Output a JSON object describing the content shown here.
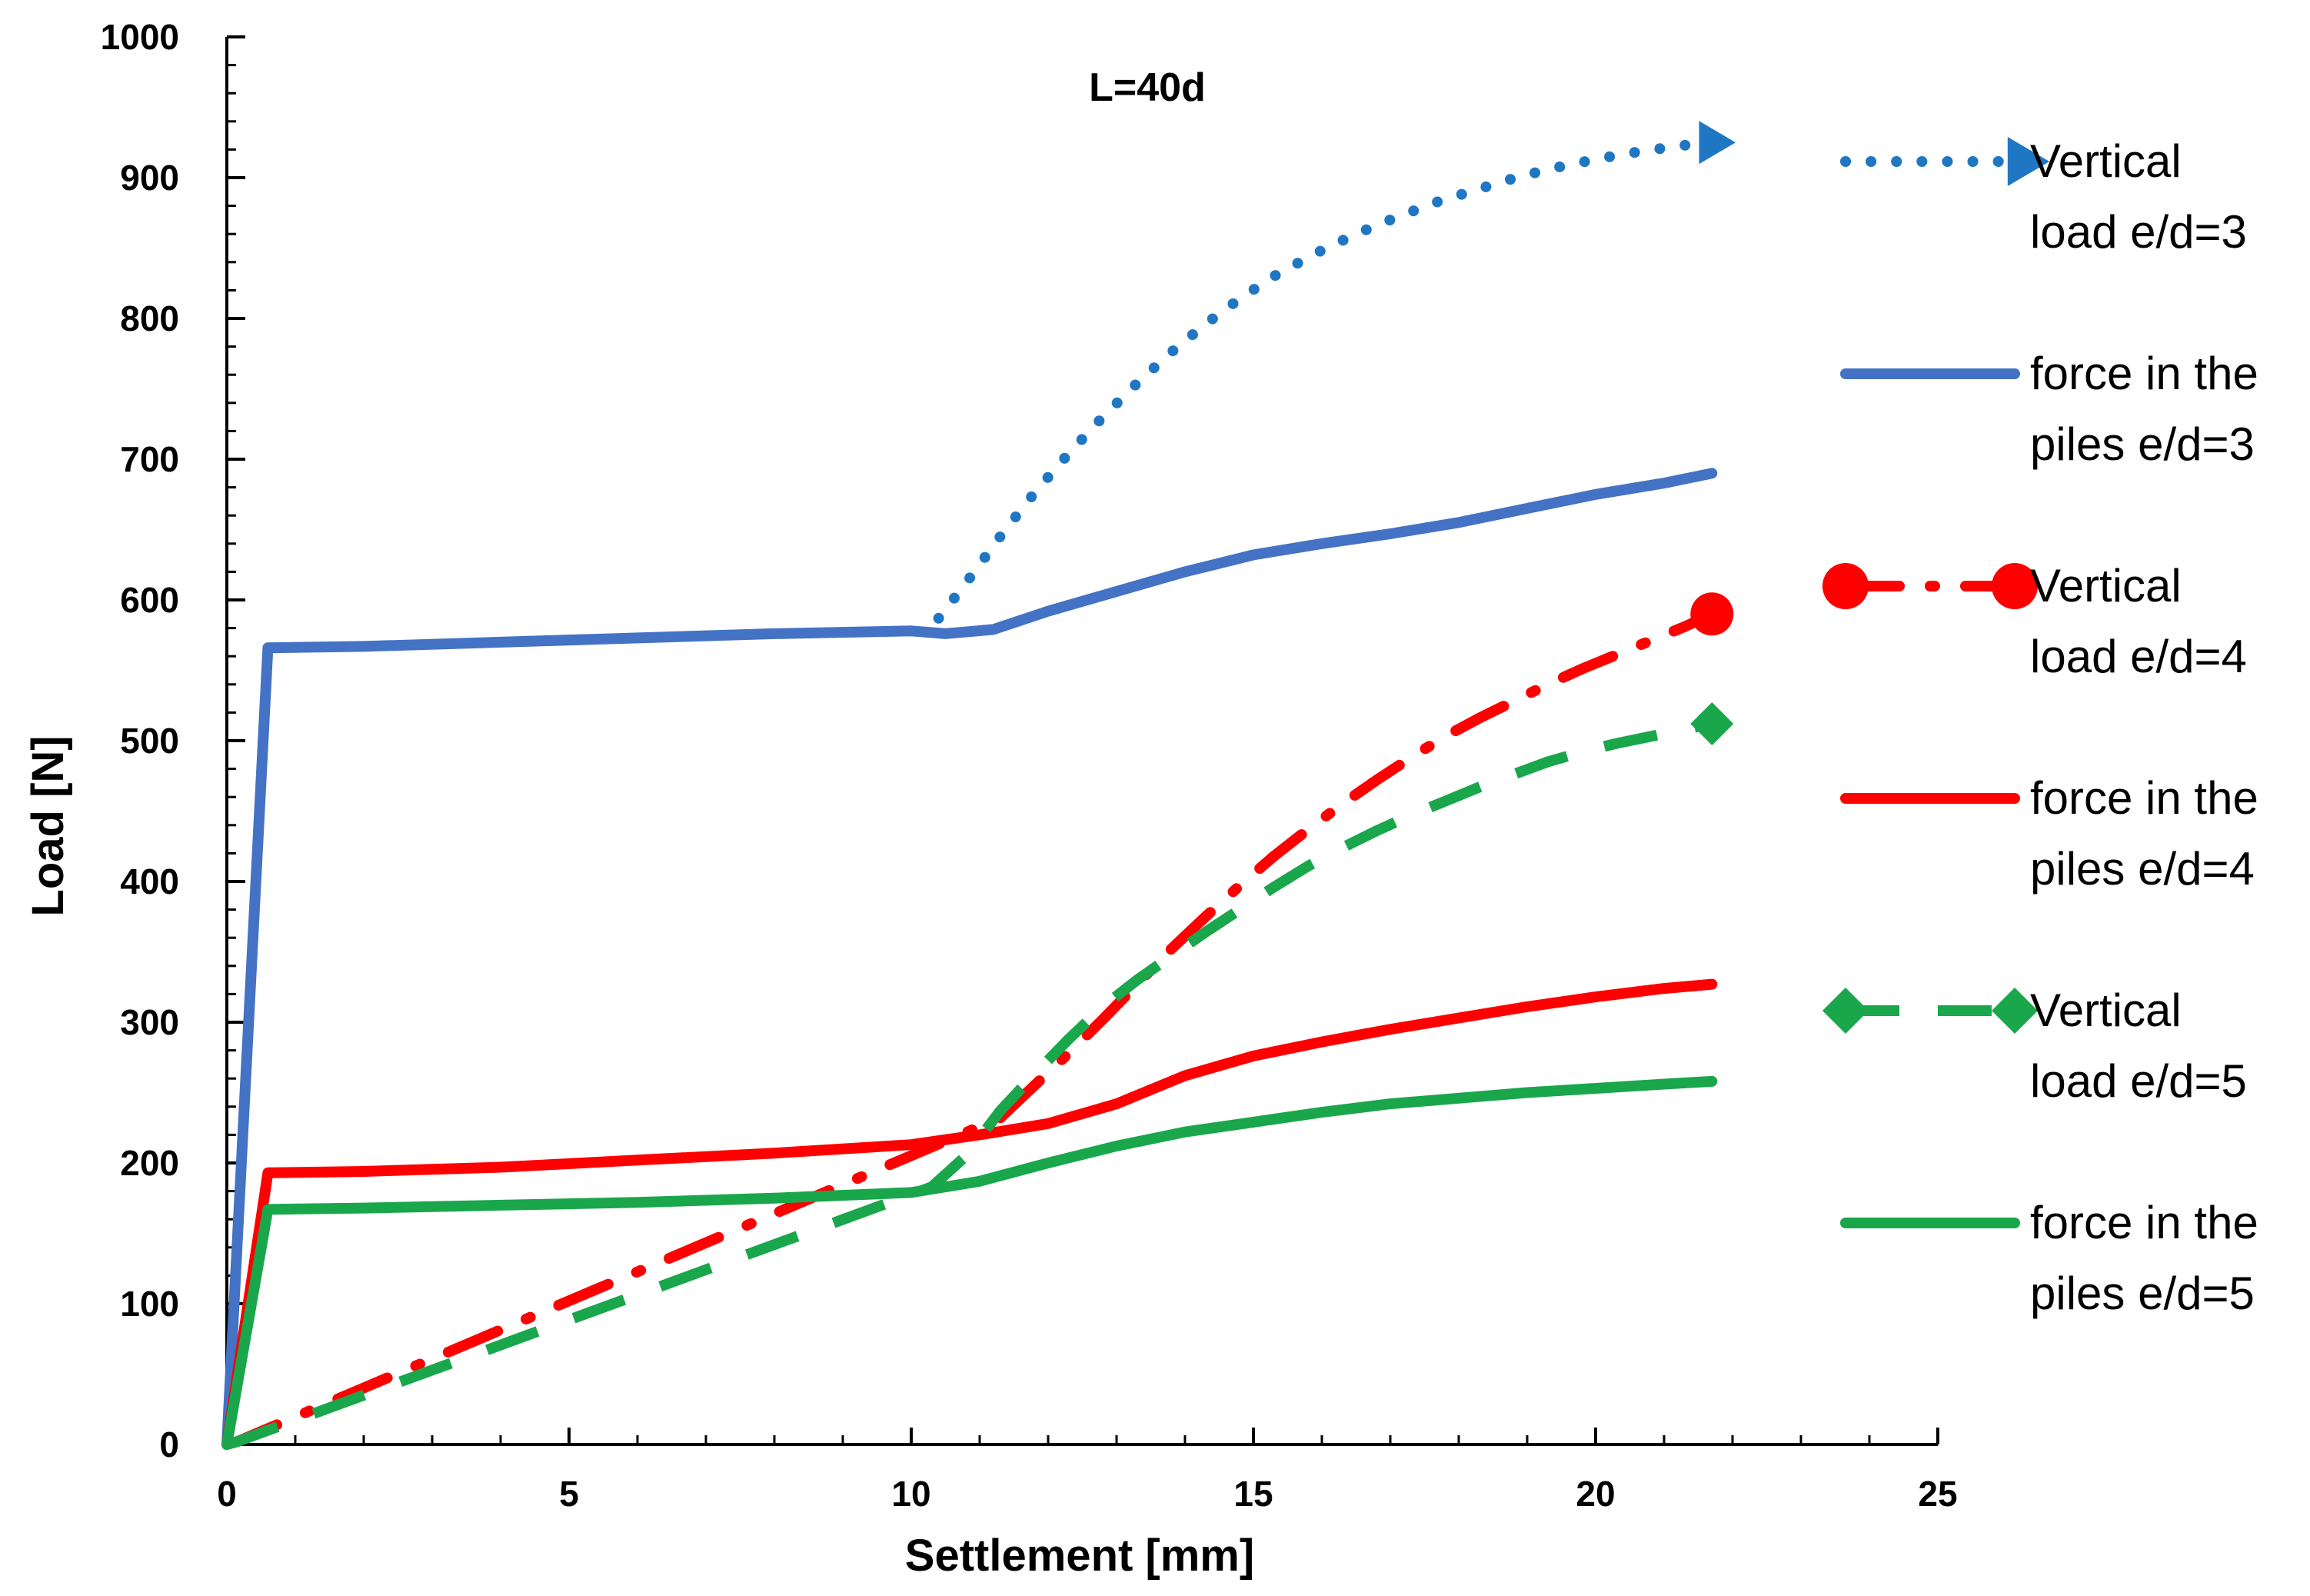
{
  "chart_data": {
    "type": "line",
    "title": "L=40d",
    "xlabel": "Settlement [mm]",
    "ylabel": "Load [N]",
    "xlim": [
      0,
      25
    ],
    "ylim": [
      0,
      1000
    ],
    "xticks": [
      0,
      5,
      10,
      15,
      20,
      25
    ],
    "yticks": [
      0,
      100,
      200,
      300,
      400,
      500,
      600,
      700,
      800,
      900,
      1000
    ],
    "grid": false,
    "legend_position": "right",
    "series": [
      {
        "name": "Vertical load e/d=3",
        "legend_lines": [
          "Vertical",
          "load e/d=3"
        ],
        "color": "#1f77c4",
        "style": "dotted",
        "marker": "triangle",
        "x": [
          10.4,
          10.8,
          11.3,
          11.8,
          12.3,
          12.8,
          13.3,
          13.8,
          14.3,
          14.8,
          15.3,
          15.9,
          16.5,
          17.1,
          17.7,
          18.3,
          18.9,
          19.5,
          20.1,
          20.7,
          21.3,
          21.7
        ],
        "y": [
          587,
          612,
          645,
          676,
          704,
          730,
          754,
          776,
          796,
          814,
          830,
          846,
          860,
          872,
          883,
          892,
          901,
          908,
          914,
          919,
          923,
          925
        ]
      },
      {
        "name": "force in the piles e/d=3",
        "legend_lines": [
          "force in the",
          "piles e/d=3"
        ],
        "color": "#4472c4",
        "style": "solid",
        "x": [
          0,
          0.6,
          2,
          4,
          6,
          8,
          10,
          10.5,
          11.2,
          12,
          13,
          14,
          15,
          16,
          17,
          18,
          19,
          20,
          21,
          21.7
        ],
        "y": [
          0,
          566,
          567,
          570,
          573,
          576,
          578,
          576,
          579,
          592,
          606,
          620,
          632,
          640,
          647,
          655,
          665,
          675,
          683,
          690
        ]
      },
      {
        "name": "Vertical load e/d=4",
        "legend_lines": [
          "Vertical",
          "load e/d=4"
        ],
        "color": "#ff0000",
        "style": "dash-dot",
        "marker": "circle",
        "x": [
          0,
          0.15,
          11.3,
          11.8,
          12.3,
          12.8,
          13.3,
          13.8,
          14.3,
          14.8,
          15.3,
          15.8,
          16.3,
          16.8,
          17.3,
          17.8,
          18.3,
          18.8,
          19.3,
          19.8,
          20.3,
          20.8,
          21.3,
          21.7
        ],
        "y": [
          0,
          2,
          232,
          255,
          278,
          302,
          327,
          352,
          375,
          397,
          418,
          437,
          455,
          472,
          488,
          503,
          516,
          528,
          540,
          551,
          561,
          571,
          581,
          590
        ]
      },
      {
        "name": "force in the piles e/d=4",
        "legend_lines": [
          "force in the",
          "piles e/d=4"
        ],
        "color": "#ff0000",
        "style": "solid",
        "x": [
          0,
          0.6,
          2,
          4,
          6,
          8,
          10,
          11,
          12,
          13,
          14,
          15,
          16,
          17,
          18,
          19,
          20,
          21,
          21.7
        ],
        "y": [
          0,
          193,
          194,
          197,
          202,
          207,
          213,
          220,
          228,
          242,
          262,
          276,
          286,
          295,
          303,
          311,
          318,
          324,
          327
        ]
      },
      {
        "name": "Vertical load e/d=5",
        "legend_lines": [
          "Vertical",
          "load e/d=5"
        ],
        "color": "#1aa64b",
        "style": "dashed",
        "marker": "diamond",
        "x": [
          0,
          0.15,
          10.3,
          10.8,
          11.3,
          11.8,
          12.3,
          12.8,
          13.3,
          13.8,
          14.3,
          14.8,
          15.3,
          15.8,
          16.3,
          16.8,
          17.3,
          17.8,
          18.3,
          18.8,
          19.3,
          19.8,
          20.3,
          20.8,
          21.3,
          21.7
        ],
        "y": [
          0,
          2,
          183,
          205,
          237,
          263,
          288,
          311,
          330,
          347,
          364,
          380,
          396,
          411,
          424,
          436,
          447,
          457,
          467,
          476,
          485,
          492,
          498,
          503,
          508,
          512
        ]
      },
      {
        "name": "force in the piles e/d=5",
        "legend_lines": [
          "force in the",
          "piles e/d=5"
        ],
        "color": "#1aa64b",
        "style": "solid",
        "x": [
          0,
          0.6,
          2,
          4,
          6,
          8,
          10,
          11,
          12,
          13,
          14,
          15,
          16,
          17,
          18,
          19,
          20,
          21,
          21.7
        ],
        "y": [
          0,
          167,
          168,
          170,
          172,
          175,
          179,
          187,
          200,
          212,
          222,
          229,
          236,
          242,
          246,
          250,
          253,
          256,
          258
        ]
      }
    ]
  }
}
